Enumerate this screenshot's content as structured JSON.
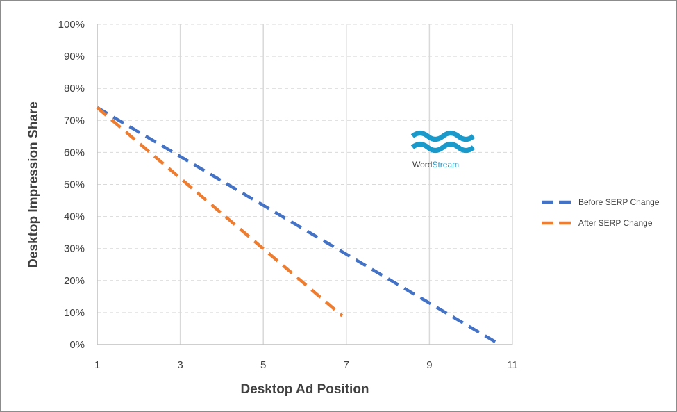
{
  "chart_data": {
    "type": "line",
    "title": "",
    "xlabel": "Desktop Ad Position",
    "ylabel": "Desktop Impression Share",
    "xlim": [
      1,
      11
    ],
    "ylim": [
      0,
      100
    ],
    "x_ticks": [
      1,
      3,
      5,
      7,
      9,
      11
    ],
    "y_ticks": [
      "0%",
      "10%",
      "20%",
      "30%",
      "40%",
      "50%",
      "60%",
      "70%",
      "80%",
      "90%",
      "100%"
    ],
    "grid": {
      "vertical": true,
      "horizontal": true,
      "horizontal_style": "dashed"
    },
    "legend_position": "right",
    "series": [
      {
        "name": "Before SERP Change",
        "color": "#4472C4",
        "style": "dashed",
        "x": [
          1,
          10.7
        ],
        "y": [
          74,
          0
        ]
      },
      {
        "name": "After SERP Change",
        "color": "#ED7D31",
        "style": "dashed",
        "x": [
          1,
          6.9
        ],
        "y": [
          74,
          9
        ]
      }
    ]
  },
  "logo": {
    "text_part1": "Word",
    "text_part2": "Stream",
    "color": "#1A9ACB",
    "icon": "wordstream-waves-logo"
  }
}
